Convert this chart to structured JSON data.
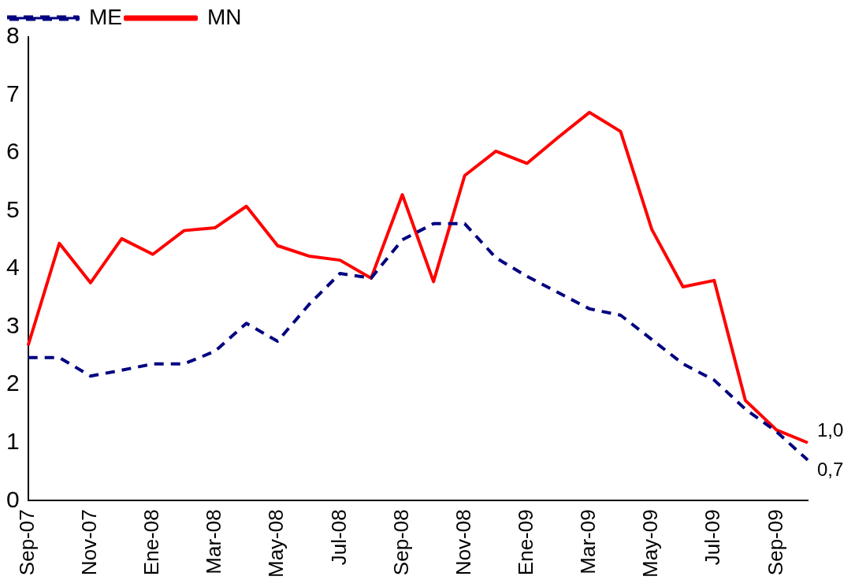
{
  "chart_data": {
    "type": "line",
    "categories": [
      "Sep-07",
      null,
      "Nov-07",
      null,
      "Ene-08",
      null,
      "Mar-08",
      null,
      "May-08",
      null,
      "Jul-08",
      null,
      "Sep-08",
      null,
      "Nov-08",
      null,
      "Ene-09",
      null,
      "Mar-09",
      null,
      "May-09",
      null,
      "Jul-09",
      null,
      "Sep-09",
      null
    ],
    "series": [
      {
        "name": "ME",
        "color": "#000080",
        "line_style": "dashed",
        "values": [
          2.47,
          2.47,
          2.15,
          2.25,
          2.36,
          2.36,
          2.58,
          3.06,
          2.75,
          3.38,
          3.92,
          3.84,
          4.5,
          4.78,
          4.78,
          4.19,
          3.87,
          3.59,
          3.31,
          3.2,
          2.78,
          2.36,
          2.08,
          1.58,
          1.19,
          0.7
        ],
        "value_labels": [
          null,
          null,
          null,
          null,
          null,
          null,
          null,
          null,
          null,
          null,
          null,
          null,
          null,
          null,
          null,
          null,
          null,
          null,
          null,
          null,
          null,
          null,
          null,
          null,
          null,
          "0,7"
        ]
      },
      {
        "name": "MN",
        "color": "#ff0000",
        "line_style": "solid",
        "values": [
          2.68,
          4.44,
          3.76,
          4.52,
          4.25,
          4.66,
          4.71,
          5.08,
          4.4,
          4.22,
          4.15,
          3.84,
          5.28,
          3.78,
          5.61,
          6.03,
          5.82,
          6.27,
          6.7,
          6.37,
          4.68,
          3.69,
          3.8,
          1.73,
          1.22,
          1.0
        ],
        "value_labels": [
          null,
          null,
          null,
          null,
          null,
          null,
          null,
          null,
          null,
          null,
          null,
          null,
          null,
          null,
          null,
          null,
          null,
          null,
          null,
          null,
          null,
          null,
          null,
          null,
          null,
          "1,0"
        ]
      }
    ],
    "ylim": [
      0,
      8
    ],
    "yticks": [
      0,
      1,
      2,
      3,
      4,
      5,
      6,
      7,
      8
    ],
    "grid": false,
    "legend": "top left",
    "marker": "none"
  }
}
